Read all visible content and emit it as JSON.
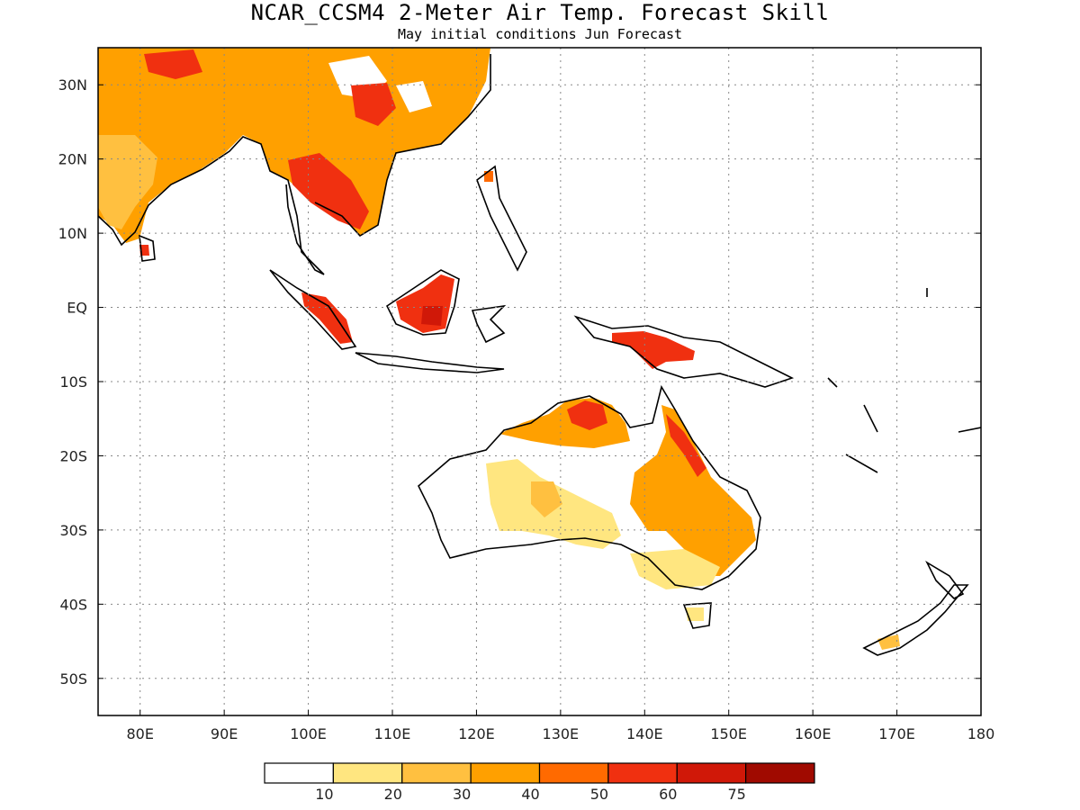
{
  "title": "NCAR_CCSM4 2-Meter Air Temp. Forecast Skill",
  "subtitle": "May initial conditions  Jun Forecast",
  "map": {
    "lon_range": [
      75,
      180
    ],
    "lat_range": [
      -55,
      35
    ],
    "lon_ticks": [
      {
        "value": 80,
        "label": "80E"
      },
      {
        "value": 90,
        "label": "90E"
      },
      {
        "value": 100,
        "label": "100E"
      },
      {
        "value": 110,
        "label": "110E"
      },
      {
        "value": 120,
        "label": "120E"
      },
      {
        "value": 130,
        "label": "130E"
      },
      {
        "value": 140,
        "label": "140E"
      },
      {
        "value": 150,
        "label": "150E"
      },
      {
        "value": 160,
        "label": "160E"
      },
      {
        "value": 170,
        "label": "170E"
      },
      {
        "value": 180,
        "label": "180"
      }
    ],
    "lat_ticks": [
      {
        "value": 30,
        "label": "30N"
      },
      {
        "value": 20,
        "label": "20N"
      },
      {
        "value": 10,
        "label": "10N"
      },
      {
        "value": 0,
        "label": "EQ"
      },
      {
        "value": -10,
        "label": "10S"
      },
      {
        "value": -20,
        "label": "20S"
      },
      {
        "value": -30,
        "label": "30S"
      },
      {
        "value": -40,
        "label": "40S"
      },
      {
        "value": -50,
        "label": "50S"
      }
    ],
    "grid": true
  },
  "colorbar": {
    "labels": [
      "10",
      "20",
      "30",
      "40",
      "50",
      "60",
      "75"
    ],
    "colors": [
      "#ffffff",
      "#ffe680",
      "#ffc040",
      "#ffa000",
      "#ff6a00",
      "#f03010",
      "#d01808",
      "#a00a00"
    ]
  }
}
